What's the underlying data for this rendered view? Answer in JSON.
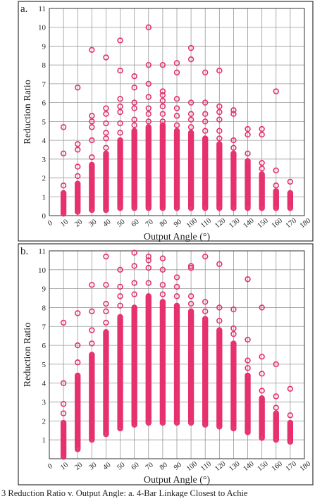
{
  "caption": "3 Reduction Ratio v. Output Angle: a. 4-Bar Linkage Closest to Achie",
  "marker_color": "#e6306f",
  "chart_data": [
    {
      "type": "scatter",
      "panel_label": "a.",
      "xlabel": "Output Angle (°)",
      "ylabel": "Reduction Ratio",
      "xlim": [
        0,
        180
      ],
      "ylim": [
        0,
        11
      ],
      "xticks": [
        0,
        10,
        20,
        30,
        40,
        50,
        60,
        70,
        80,
        90,
        100,
        110,
        120,
        130,
        140,
        150,
        160,
        170,
        180
      ],
      "yticks": [
        0,
        1,
        2,
        3,
        4,
        5,
        6,
        7,
        8,
        9,
        10,
        11
      ],
      "grid": true,
      "columns": [
        {
          "x": 10,
          "dense_min": 0.1,
          "dense_max": 1.2,
          "outliers": [
            1.6,
            3.3,
            4.7
          ]
        },
        {
          "x": 20,
          "dense_min": 0.2,
          "dense_max": 1.7,
          "outliers": [
            2.1,
            2.6,
            3.5,
            3.8,
            6.8
          ]
        },
        {
          "x": 30,
          "dense_min": 0.3,
          "dense_max": 2.7,
          "outliers": [
            3.1,
            4.0,
            4.7,
            5.0,
            5.3,
            8.8
          ]
        },
        {
          "x": 40,
          "dense_min": 0.3,
          "dense_max": 3.3,
          "outliers": [
            3.6,
            4.1,
            4.4,
            4.9,
            5.4,
            5.7,
            8.4
          ]
        },
        {
          "x": 50,
          "dense_min": 0.4,
          "dense_max": 4.0,
          "outliers": [
            4.4,
            4.9,
            5.5,
            5.8,
            6.2,
            7.7,
            9.3
          ]
        },
        {
          "x": 60,
          "dense_min": 0.4,
          "dense_max": 4.5,
          "outliers": [
            4.8,
            5.1,
            5.7,
            6.0,
            6.8,
            7.4
          ]
        },
        {
          "x": 70,
          "dense_min": 0.4,
          "dense_max": 4.7,
          "outliers": [
            5.0,
            5.4,
            5.7,
            6.3,
            7.0,
            8.0,
            10.0
          ]
        },
        {
          "x": 80,
          "dense_min": 0.4,
          "dense_max": 4.8,
          "outliers": [
            5.0,
            5.4,
            5.8,
            6.1,
            6.4,
            6.6,
            8.0
          ]
        },
        {
          "x": 90,
          "dense_min": 0.4,
          "dense_max": 4.5,
          "outliers": [
            4.8,
            5.3,
            5.7,
            6.2,
            7.6,
            8.1
          ]
        },
        {
          "x": 100,
          "dense_min": 0.4,
          "dense_max": 4.4,
          "outliers": [
            4.7,
            5.1,
            5.4,
            6.0,
            8.3,
            8.9
          ]
        },
        {
          "x": 110,
          "dense_min": 0.4,
          "dense_max": 4.1,
          "outliers": [
            4.5,
            5.0,
            5.4,
            6.0,
            7.6
          ]
        },
        {
          "x": 120,
          "dense_min": 0.4,
          "dense_max": 3.8,
          "outliers": [
            4.1,
            4.5,
            5.1,
            5.5,
            5.8,
            7.7
          ]
        },
        {
          "x": 130,
          "dense_min": 0.4,
          "dense_max": 3.3,
          "outliers": [
            3.6,
            4.0,
            5.4,
            5.6
          ]
        },
        {
          "x": 140,
          "dense_min": 0.4,
          "dense_max": 2.9,
          "outliers": [
            3.3,
            4.3,
            4.6
          ]
        },
        {
          "x": 150,
          "dense_min": 0.4,
          "dense_max": 2.2,
          "outliers": [
            2.5,
            2.8,
            4.3,
            4.6
          ]
        },
        {
          "x": 160,
          "dense_min": 0.4,
          "dense_max": 1.3,
          "outliers": [
            1.6,
            2.4,
            6.6
          ]
        },
        {
          "x": 170,
          "dense_min": 0.4,
          "dense_max": 1.2,
          "outliers": [
            1.8
          ]
        }
      ]
    },
    {
      "type": "scatter",
      "panel_label": "b.",
      "xlabel": "Output Angle (°)",
      "ylabel": "Reduction Ratio",
      "xlim": [
        0,
        180
      ],
      "ylim": [
        0,
        11
      ],
      "xticks": [
        0,
        10,
        20,
        30,
        40,
        50,
        60,
        70,
        80,
        90,
        100,
        110,
        120,
        130,
        140,
        150,
        160,
        170,
        180
      ],
      "yticks": [
        1,
        2,
        3,
        4,
        5,
        6,
        7,
        8,
        9,
        10,
        11
      ],
      "grid": true,
      "columns": [
        {
          "x": 10,
          "dense_min": 0.1,
          "dense_max": 1.9,
          "outliers": [
            2.4,
            2.9,
            4.0,
            7.2
          ]
        },
        {
          "x": 20,
          "dense_min": 0.5,
          "dense_max": 4.4,
          "outliers": [
            5.1,
            6.0,
            7.7
          ]
        },
        {
          "x": 30,
          "dense_min": 1.0,
          "dense_max": 5.5,
          "outliers": [
            6.1,
            6.8,
            7.8,
            9.2
          ]
        },
        {
          "x": 40,
          "dense_min": 1.3,
          "dense_max": 6.7,
          "outliers": [
            7.2,
            7.8,
            8.2,
            9.2,
            10.7
          ]
        },
        {
          "x": 50,
          "dense_min": 1.6,
          "dense_max": 7.5,
          "outliers": [
            8.1,
            8.6,
            9.1,
            10.0
          ]
        },
        {
          "x": 60,
          "dense_min": 1.8,
          "dense_max": 8.0,
          "outliers": [
            8.7,
            9.3,
            10.2,
            10.9
          ]
        },
        {
          "x": 70,
          "dense_min": 1.9,
          "dense_max": 8.6,
          "outliers": [
            9.3,
            10.1,
            10.5,
            10.7
          ]
        },
        {
          "x": 80,
          "dense_min": 1.9,
          "dense_max": 8.3,
          "outliers": [
            8.7,
            9.2,
            10.0,
            10.6
          ]
        },
        {
          "x": 90,
          "dense_min": 1.9,
          "dense_max": 8.1,
          "outliers": [
            8.6,
            9.1,
            9.6
          ]
        },
        {
          "x": 100,
          "dense_min": 1.9,
          "dense_max": 7.8,
          "outliers": [
            8.2,
            8.6,
            10.1,
            10.2
          ]
        },
        {
          "x": 110,
          "dense_min": 1.8,
          "dense_max": 7.4,
          "outliers": [
            7.8,
            8.3,
            10.7
          ]
        },
        {
          "x": 120,
          "dense_min": 1.7,
          "dense_max": 6.8,
          "outliers": [
            7.3,
            8.0,
            10.3
          ]
        },
        {
          "x": 130,
          "dense_min": 1.6,
          "dense_max": 6.1,
          "outliers": [
            6.6,
            6.9,
            7.9
          ]
        },
        {
          "x": 140,
          "dense_min": 1.4,
          "dense_max": 4.4,
          "outliers": [
            4.8,
            5.2,
            6.3,
            9.5
          ]
        },
        {
          "x": 150,
          "dense_min": 1.1,
          "dense_max": 3.2,
          "outliers": [
            3.6,
            4.5,
            5.4,
            8.0
          ]
        },
        {
          "x": 160,
          "dense_min": 1.0,
          "dense_max": 2.4,
          "outliers": [
            2.7,
            3.3,
            5.0
          ]
        },
        {
          "x": 170,
          "dense_min": 0.9,
          "dense_max": 1.9,
          "outliers": [
            2.3,
            3.7
          ]
        }
      ]
    }
  ]
}
